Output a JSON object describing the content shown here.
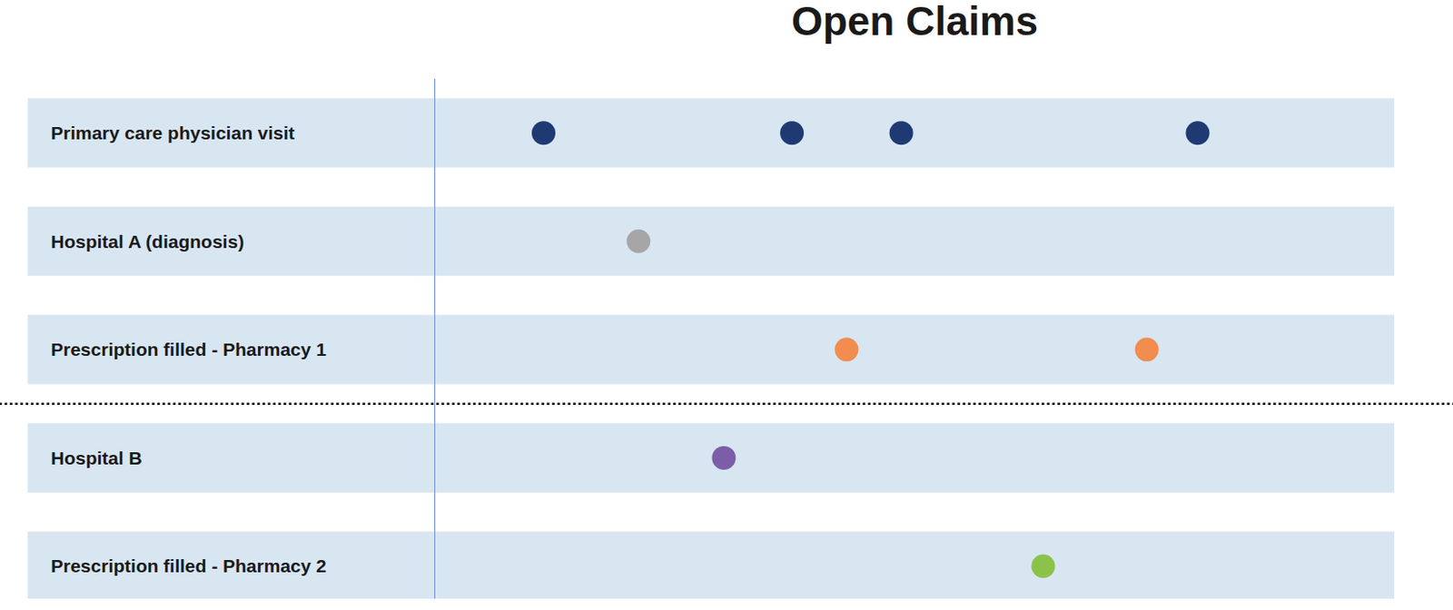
{
  "chart_data": {
    "type": "scatter",
    "title": "Open Claims",
    "marker": "circle",
    "tick_labels": false,
    "xlim": [
      0,
      100
    ],
    "xticks": [],
    "series": [
      {
        "name": "Primary care physician visit",
        "color": "#1f3a73",
        "x": [
          11.3,
          37.2,
          48.6,
          79.5
        ]
      },
      {
        "name": "Hospital A (diagnosis)",
        "color": "#a6a6a6",
        "x": [
          21.2
        ]
      },
      {
        "name": "Prescription filled - Pharmacy 1",
        "color": "#f28c4f",
        "x": [
          42.9,
          74.2
        ]
      },
      {
        "name": "Hospital B",
        "color": "#7b5ea7",
        "x": [
          30.1
        ]
      },
      {
        "name": "Prescription filled - Pharmacy 2",
        "color": "#8bc34a",
        "x": [
          63.4
        ]
      }
    ]
  }
}
